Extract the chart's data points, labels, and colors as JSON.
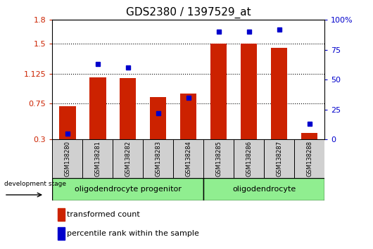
{
  "title": "GDS2380 / 1397529_at",
  "samples": [
    "GSM138280",
    "GSM138281",
    "GSM138282",
    "GSM138283",
    "GSM138284",
    "GSM138285",
    "GSM138286",
    "GSM138287",
    "GSM138288"
  ],
  "transformed_count": [
    0.72,
    1.08,
    1.07,
    0.83,
    0.88,
    1.5,
    1.5,
    1.45,
    0.38
  ],
  "percentile_rank": [
    5,
    63,
    60,
    22,
    35,
    90,
    90,
    92,
    13
  ],
  "ylim_left": [
    0.3,
    1.8
  ],
  "ylim_right": [
    0,
    100
  ],
  "yticks_left": [
    0.3,
    0.75,
    1.125,
    1.5,
    1.8
  ],
  "yticks_right": [
    0,
    25,
    50,
    75,
    100
  ],
  "ytick_labels_left": [
    "0.3",
    "0.75",
    "1.125",
    "1.5",
    "1.8"
  ],
  "ytick_labels_right": [
    "0",
    "25",
    "50",
    "75",
    "100%"
  ],
  "hlines": [
    0.75,
    1.125,
    1.5
  ],
  "bar_color": "#cc2200",
  "dot_color": "#0000cc",
  "group1_label": "oligodendrocyte progenitor",
  "group2_label": "oligodendrocyte",
  "group1_samples": 5,
  "group2_samples": 4,
  "legend_bar_label": "transformed count",
  "legend_dot_label": "percentile rank within the sample",
  "dev_stage_label": "development stage",
  "group_bg": "#90ee90",
  "sample_box_bg": "#d0d0d0",
  "left_axis_color": "#cc2200",
  "right_axis_color": "#0000cc",
  "title_fontsize": 11,
  "tick_fontsize": 8,
  "sample_fontsize": 6,
  "group_fontsize": 8,
  "legend_fontsize": 8
}
